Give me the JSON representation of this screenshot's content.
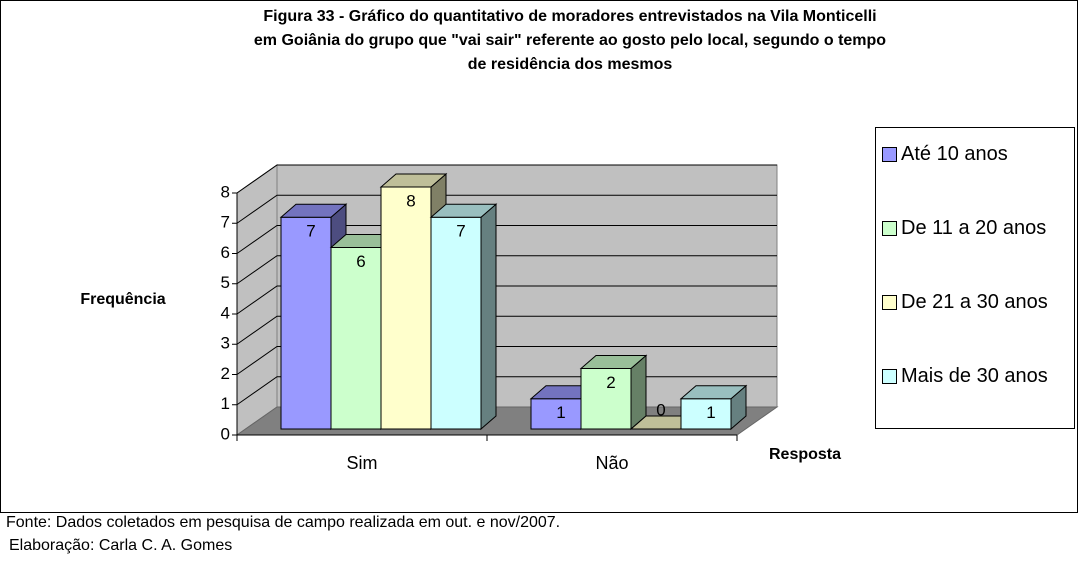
{
  "chart_data": {
    "type": "bar3d",
    "title": [
      "Figura 33 -  Gráfico do  quantitativo de moradores entrevistados na Vila Monticelli",
      "em Goiânia do grupo que \"vai sair\" referente ao gosto pelo local, segundo o tempo",
      "de residência dos mesmos"
    ],
    "y_label": "Frequência",
    "x_label": "Resposta",
    "categories": [
      "Sim",
      "Não"
    ],
    "series": [
      {
        "name": "Até 10 anos",
        "color": "#9999ff",
        "values": [
          7,
          1
        ]
      },
      {
        "name": "De 11 a 20 anos",
        "color": "#ccffcc",
        "values": [
          6,
          2
        ]
      },
      {
        "name": "De 21 a 30 anos",
        "color": "#ffffcc",
        "values": [
          8,
          0
        ]
      },
      {
        "name": "Mais de 30 anos",
        "color": "#ccffff",
        "values": [
          7,
          1
        ]
      }
    ],
    "ylim": [
      0,
      8
    ],
    "yticks": [
      0,
      1,
      2,
      3,
      4,
      5,
      6,
      7,
      8
    ],
    "grid": true,
    "legend": "right"
  },
  "footer": [
    "Fonte: Dados coletados em pesquisa  de campo realizada em out. e nov/2007.",
    "Elaboração: Carla C. A. Gomes"
  ]
}
